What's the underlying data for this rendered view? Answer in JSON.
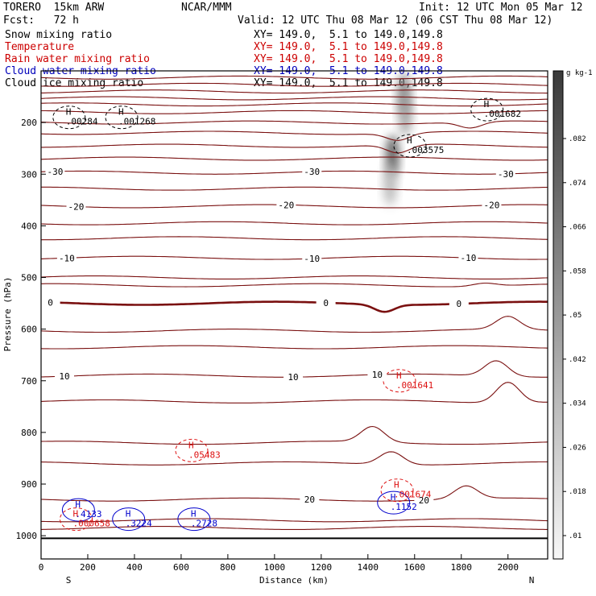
{
  "header": {
    "model": "TORERO  15km ARW",
    "org": "NCAR/MMM",
    "init": "Init: 12 UTC Mon 05 Mar 12",
    "fcst": "Fcst:   72 h",
    "valid": "Valid: 12 UTC Thu 08 Mar 12 (06 CST Thu 08 Mar 12)",
    "xy_text": "XY= 149.0,  5.1 to 149.0,149.8"
  },
  "fields": [
    {
      "name": "Snow mixing ratio",
      "color": "#000000"
    },
    {
      "name": "Temperature",
      "color": "#cc0000"
    },
    {
      "name": "Rain water mixing ratio",
      "color": "#cc0000"
    },
    {
      "name": "Cloud water mixing ratio",
      "color": "#0000bb"
    },
    {
      "name": "Cloud ice mixing ratio",
      "color": "#000000"
    }
  ],
  "colors": {
    "temperature": "#7a1010",
    "rain": "#dd1111",
    "cloud_water": "#0000cc",
    "ice": "#000000",
    "frame": "#000000"
  },
  "chart_data": {
    "type": "cross-section",
    "xlabel": "Distance (km)",
    "ylabel": "Pressure (hPa)",
    "xlim": [
      0,
      2170
    ],
    "ylim": [
      1045,
      100
    ],
    "x_ticks": [
      0,
      200,
      400,
      600,
      800,
      1000,
      1200,
      1400,
      1600,
      1800,
      2000
    ],
    "y_ticks": [
      200,
      300,
      400,
      500,
      600,
      700,
      800,
      900,
      1000
    ],
    "endpoint_labels": {
      "left": "S",
      "right": "N"
    },
    "colorbar": {
      "unit": "g kg-1",
      "labels": [
        ".01",
        ".018",
        ".026",
        ".034",
        ".042",
        ".05",
        ".058",
        ".066",
        ".074",
        ".082"
      ],
      "range": [
        0.006,
        0.09
      ]
    },
    "isotherms": [
      {
        "p": 113
      },
      {
        "p": 127
      },
      {
        "p": 140
      },
      {
        "p": 153
      },
      {
        "p": 165
      },
      {
        "p": 180
      },
      {
        "p": 200,
        "bump_x": 1840,
        "bump_dp": 12
      },
      {
        "p": 220,
        "bump_x": 1530,
        "bump_dp": 14
      },
      {
        "p": 245,
        "bump_x": 1530,
        "bump_dp": 16
      },
      {
        "p": 270
      },
      {
        "p": 297,
        "label": "-30",
        "label_x": [
          60,
          1160,
          1990
        ]
      },
      {
        "p": 328
      },
      {
        "p": 362,
        "label": "-20",
        "label_x": [
          150,
          1050,
          1930
        ]
      },
      {
        "p": 395
      },
      {
        "p": 424
      },
      {
        "p": 462,
        "label": "-10",
        "label_x": [
          110,
          1160,
          1830
        ]
      },
      {
        "p": 500
      },
      {
        "p": 515,
        "bump_x": 1900,
        "bump_dp": -6
      },
      {
        "p": 550,
        "label": "0",
        "label_x": [
          40,
          1220,
          1790
        ],
        "bold": true,
        "dip_x": 1470,
        "dip_dp": 14
      },
      {
        "p": 603,
        "bump_x": 2000,
        "bump_dp": -25
      },
      {
        "p": 635
      },
      {
        "p": 690,
        "label": "10",
        "label_x": [
          100,
          1080,
          1440
        ],
        "bump_x": 1950,
        "bump_dp": -30
      },
      {
        "p": 740,
        "bump_x": 2000,
        "bump_dp": -40
      },
      {
        "p": 820,
        "bump_x": 1420,
        "bump_dp": -30
      },
      {
        "p": 860,
        "bump_x": 1500,
        "bump_dp": -25
      },
      {
        "p": 930,
        "label": "20",
        "label_x": [
          1150,
          1640
        ],
        "bump_x": 1820,
        "bump_dp": -25
      },
      {
        "p": 970
      },
      {
        "p": 985
      }
    ],
    "highs": [
      {
        "x": 120,
        "p": 190,
        "value": ".00284",
        "color": "black"
      },
      {
        "x": 345,
        "p": 190,
        "value": ".001268",
        "color": "black"
      },
      {
        "x": 1910,
        "p": 175,
        "value": ".001682",
        "color": "black"
      },
      {
        "x": 1580,
        "p": 245,
        "value": ".003575",
        "color": "black"
      },
      {
        "x": 1535,
        "p": 700,
        "value": ".001641",
        "color": "red"
      },
      {
        "x": 645,
        "p": 835,
        "value": ".05483",
        "color": "red"
      },
      {
        "x": 160,
        "p": 950,
        "value": ".4133",
        "color": "blue"
      },
      {
        "x": 150,
        "p": 968,
        "value": ".000658",
        "color": "red"
      },
      {
        "x": 375,
        "p": 968,
        "value": ".3224",
        "color": "blue"
      },
      {
        "x": 655,
        "p": 968,
        "value": ".2728",
        "color": "blue"
      },
      {
        "x": 1525,
        "p": 912,
        "value": ".001674",
        "color": "red"
      },
      {
        "x": 1510,
        "p": 936,
        "value": ".1152",
        "color": "blue"
      }
    ],
    "snow_plume": [
      {
        "x": 1555,
        "p": 145,
        "value": 0.06
      },
      {
        "x": 1560,
        "p": 185,
        "value": 0.045
      },
      {
        "x": 1505,
        "p": 265,
        "value": 0.08
      },
      {
        "x": 1495,
        "p": 320,
        "value": 0.035
      }
    ]
  }
}
